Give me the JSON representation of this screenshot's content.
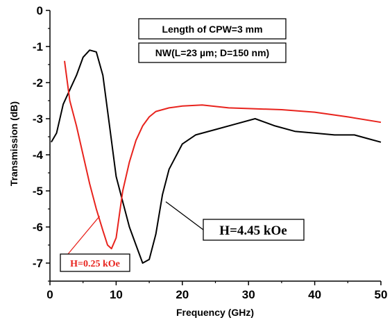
{
  "chart_data": {
    "type": "line",
    "title": "",
    "xlabel": "Frequency (GHz)",
    "ylabel": "Transmission (dB)",
    "xlim": [
      0,
      50
    ],
    "ylim": [
      -7.5,
      0
    ],
    "x_ticks": [
      0,
      10,
      20,
      30,
      40,
      50
    ],
    "y_ticks": [
      0,
      -1,
      -2,
      -3,
      -4,
      -5,
      -6,
      -7
    ],
    "grid": false,
    "annotations": [
      "Length of CPW=3 mm",
      "NW(L=23 µm; D=150 nm)"
    ],
    "series": [
      {
        "name": "H=4.45 kOe",
        "color": "#000000",
        "x": [
          0.2,
          1,
          2,
          3,
          4,
          5,
          6,
          7,
          8,
          9,
          10,
          11,
          12,
          13,
          14,
          15,
          16,
          17,
          18,
          20,
          22,
          25,
          28,
          31,
          34,
          37,
          40,
          43,
          46,
          48,
          50
        ],
        "y": [
          -3.65,
          -3.4,
          -2.6,
          -2.2,
          -1.8,
          -1.3,
          -1.1,
          -1.15,
          -1.8,
          -3.2,
          -4.6,
          -5.3,
          -6.0,
          -6.5,
          -7.0,
          -6.9,
          -6.2,
          -5.1,
          -4.4,
          -3.7,
          -3.45,
          -3.3,
          -3.15,
          -3.0,
          -3.2,
          -3.35,
          -3.4,
          -3.45,
          -3.45,
          -3.55,
          -3.65
        ]
      },
      {
        "name": "H=0.25 kOe",
        "color": "#e8231d",
        "x": [
          2.2,
          3,
          4,
          5,
          6,
          7,
          8,
          8.7,
          9.3,
          10,
          11,
          12,
          13,
          14,
          15,
          16,
          18,
          20,
          23,
          27,
          30,
          35,
          40,
          45,
          50
        ],
        "y": [
          -1.4,
          -2.5,
          -3.2,
          -4.0,
          -4.8,
          -5.5,
          -6.1,
          -6.5,
          -6.6,
          -6.3,
          -5.0,
          -4.2,
          -3.6,
          -3.2,
          -2.95,
          -2.8,
          -2.7,
          -2.65,
          -2.62,
          -2.7,
          -2.72,
          -2.75,
          -2.82,
          -2.95,
          -3.1
        ]
      }
    ],
    "series_labels": [
      {
        "series": "H=4.45 kOe",
        "text": "H=4.45 kOe",
        "point": [
          17.5,
          -5.3
        ],
        "label_at": [
          24,
          -6.1
        ]
      },
      {
        "series": "H=0.25 kOe",
        "text": "H=0.25 kOe",
        "point": [
          7.5,
          -5.7
        ],
        "label_at": [
          1.5,
          -7.2
        ]
      }
    ]
  }
}
